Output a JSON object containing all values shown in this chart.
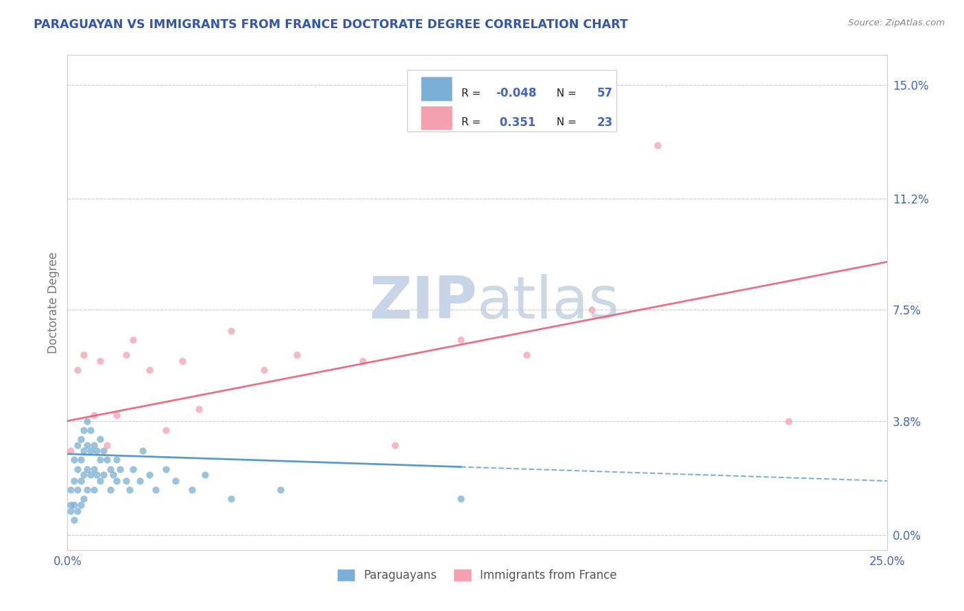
{
  "title": "PARAGUAYAN VS IMMIGRANTS FROM FRANCE DOCTORATE DEGREE CORRELATION CHART",
  "source": "Source: ZipAtlas.com",
  "ylabel": "Doctorate Degree",
  "xlim": [
    0.0,
    0.25
  ],
  "ylim": [
    -0.005,
    0.16
  ],
  "yticks": [
    0.0,
    0.038,
    0.075,
    0.112,
    0.15
  ],
  "ytick_labels": [
    "0.0%",
    "3.8%",
    "7.5%",
    "11.2%",
    "15.0%"
  ],
  "xticks": [
    0.0,
    0.25
  ],
  "xtick_labels": [
    "0.0%",
    "25.0%"
  ],
  "blue_color": "#7BAFD4",
  "pink_color": "#F4A0B0",
  "blue_line_color": "#4A90C4",
  "pink_line_color": "#E8607A",
  "axis_color": "#4466BB",
  "title_color": "#3355AA",
  "watermark_color": "#C8D4E8",
  "blue_line_solid_end": 0.12,
  "pink_line_start_y": 0.038,
  "pink_line_end_y": 0.091,
  "blue_line_start_y": 0.027,
  "blue_line_end_y": 0.018,
  "paraguayan_x": [
    0.001,
    0.001,
    0.001,
    0.002,
    0.002,
    0.002,
    0.002,
    0.003,
    0.003,
    0.003,
    0.003,
    0.004,
    0.004,
    0.004,
    0.004,
    0.005,
    0.005,
    0.005,
    0.005,
    0.006,
    0.006,
    0.006,
    0.006,
    0.007,
    0.007,
    0.007,
    0.008,
    0.008,
    0.008,
    0.009,
    0.009,
    0.01,
    0.01,
    0.01,
    0.011,
    0.011,
    0.012,
    0.013,
    0.013,
    0.014,
    0.015,
    0.015,
    0.016,
    0.018,
    0.019,
    0.02,
    0.022,
    0.023,
    0.025,
    0.027,
    0.03,
    0.033,
    0.038,
    0.042,
    0.05,
    0.065,
    0.12
  ],
  "paraguayan_y": [
    0.01,
    0.015,
    0.008,
    0.025,
    0.018,
    0.01,
    0.005,
    0.03,
    0.022,
    0.015,
    0.008,
    0.032,
    0.025,
    0.018,
    0.01,
    0.035,
    0.028,
    0.02,
    0.012,
    0.038,
    0.03,
    0.022,
    0.015,
    0.035,
    0.028,
    0.02,
    0.03,
    0.022,
    0.015,
    0.028,
    0.02,
    0.032,
    0.025,
    0.018,
    0.028,
    0.02,
    0.025,
    0.022,
    0.015,
    0.02,
    0.025,
    0.018,
    0.022,
    0.018,
    0.015,
    0.022,
    0.018,
    0.028,
    0.02,
    0.015,
    0.022,
    0.018,
    0.015,
    0.02,
    0.012,
    0.015,
    0.012
  ],
  "france_x": [
    0.001,
    0.003,
    0.005,
    0.008,
    0.01,
    0.012,
    0.015,
    0.018,
    0.02,
    0.025,
    0.03,
    0.035,
    0.04,
    0.05,
    0.06,
    0.07,
    0.09,
    0.1,
    0.12,
    0.14,
    0.16,
    0.18,
    0.22
  ],
  "france_y": [
    0.028,
    0.055,
    0.06,
    0.04,
    0.058,
    0.03,
    0.04,
    0.06,
    0.065,
    0.055,
    0.035,
    0.058,
    0.042,
    0.068,
    0.055,
    0.06,
    0.058,
    0.03,
    0.065,
    0.06,
    0.075,
    0.13,
    0.038
  ]
}
